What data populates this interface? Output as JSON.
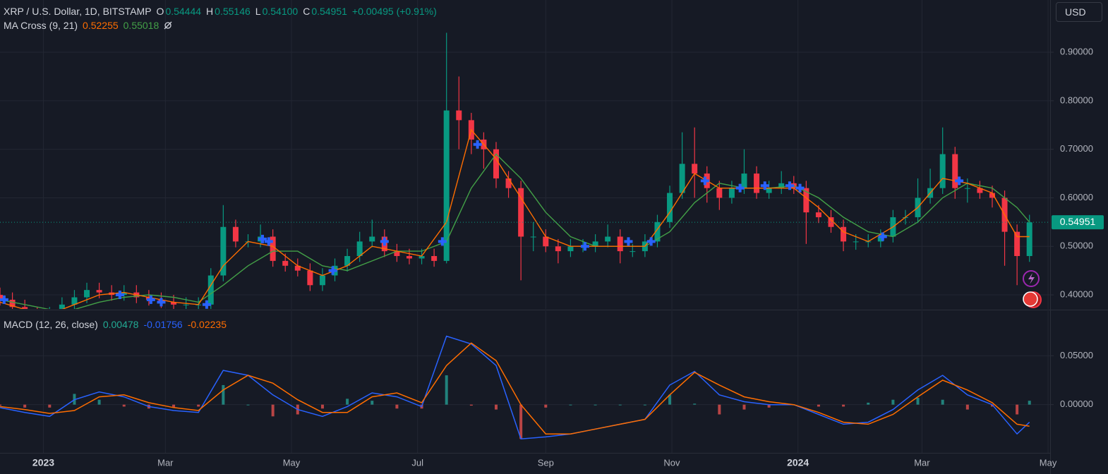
{
  "chart_data": [
    {
      "type": "candlestick",
      "title": "XRP / U.S. Dollar, 1D, BITSTAMP",
      "quote": [
        {
          "label": "O",
          "value": "0.54444"
        },
        {
          "label": "H",
          "value": "0.55146"
        },
        {
          "label": "L",
          "value": "0.54100"
        },
        {
          "label": "C",
          "value": "0.54951"
        }
      ],
      "change": "+0.00495 (+0.91%)",
      "currency": "USD",
      "x": [
        0,
        6,
        12,
        18,
        24,
        30,
        36,
        42,
        48,
        54,
        60,
        66,
        72,
        78,
        84,
        90,
        96,
        102,
        108,
        114,
        120,
        126,
        132,
        138,
        144,
        150,
        156,
        162,
        168,
        174,
        180,
        186,
        192,
        198,
        204,
        210,
        216,
        222,
        228,
        234,
        240,
        246,
        252,
        258,
        264,
        270,
        276,
        282,
        288,
        294,
        300,
        306,
        312,
        318,
        324,
        330,
        336,
        342,
        348,
        354,
        360,
        366,
        372,
        378,
        384,
        390,
        396,
        402,
        408,
        414,
        420,
        426,
        432,
        438,
        444,
        450,
        456,
        462,
        468,
        474,
        480,
        486,
        492,
        498
      ],
      "open": [
        0.4,
        0.39,
        0.375,
        0.36,
        0.355,
        0.36,
        0.38,
        0.395,
        0.41,
        0.405,
        0.4,
        0.405,
        0.395,
        0.39,
        0.385,
        0.38,
        0.38,
        0.38,
        0.44,
        0.54,
        0.51,
        0.51,
        0.52,
        0.47,
        0.46,
        0.45,
        0.42,
        0.44,
        0.46,
        0.48,
        0.51,
        0.52,
        0.49,
        0.48,
        0.475,
        0.48,
        0.47,
        0.78,
        0.76,
        0.72,
        0.7,
        0.64,
        0.62,
        0.52,
        0.52,
        0.5,
        0.49,
        0.5,
        0.5,
        0.51,
        0.52,
        0.49,
        0.49,
        0.51,
        0.55,
        0.61,
        0.67,
        0.65,
        0.62,
        0.6,
        0.62,
        0.65,
        0.61,
        0.62,
        0.63,
        0.62,
        0.57,
        0.56,
        0.54,
        0.51,
        0.51,
        0.51,
        0.52,
        0.56,
        0.56,
        0.6,
        0.62,
        0.69,
        0.62,
        0.62,
        0.61,
        0.6,
        0.53,
        0.48
      ],
      "high": [
        0.415,
        0.405,
        0.39,
        0.375,
        0.375,
        0.395,
        0.41,
        0.425,
        0.425,
        0.42,
        0.42,
        0.42,
        0.41,
        0.405,
        0.4,
        0.395,
        0.395,
        0.455,
        0.585,
        0.555,
        0.525,
        0.545,
        0.535,
        0.485,
        0.475,
        0.465,
        0.455,
        0.475,
        0.495,
        0.53,
        0.555,
        0.535,
        0.505,
        0.495,
        0.495,
        0.495,
        0.94,
        0.85,
        0.775,
        0.735,
        0.715,
        0.655,
        0.635,
        0.55,
        0.535,
        0.515,
        0.515,
        0.515,
        0.525,
        0.545,
        0.535,
        0.505,
        0.525,
        0.565,
        0.625,
        0.735,
        0.745,
        0.665,
        0.635,
        0.635,
        0.7,
        0.665,
        0.635,
        0.655,
        0.645,
        0.635,
        0.585,
        0.575,
        0.555,
        0.525,
        0.525,
        0.535,
        0.575,
        0.575,
        0.64,
        0.66,
        0.745,
        0.705,
        0.64,
        0.635,
        0.625,
        0.615,
        0.545,
        0.565
      ],
      "low": [
        0.378,
        0.363,
        0.348,
        0.343,
        0.343,
        0.348,
        0.368,
        0.383,
        0.393,
        0.388,
        0.388,
        0.383,
        0.378,
        0.373,
        0.368,
        0.368,
        0.368,
        0.368,
        0.428,
        0.498,
        0.498,
        0.498,
        0.458,
        0.448,
        0.438,
        0.408,
        0.408,
        0.428,
        0.448,
        0.468,
        0.498,
        0.478,
        0.468,
        0.463,
        0.463,
        0.458,
        0.465,
        0.7,
        0.69,
        0.66,
        0.62,
        0.6,
        0.43,
        0.49,
        0.488,
        0.465,
        0.478,
        0.488,
        0.488,
        0.498,
        0.465,
        0.478,
        0.478,
        0.498,
        0.538,
        0.598,
        0.6,
        0.59,
        0.575,
        0.588,
        0.608,
        0.598,
        0.598,
        0.608,
        0.608,
        0.505,
        0.548,
        0.528,
        0.49,
        0.493,
        0.498,
        0.498,
        0.508,
        0.545,
        0.548,
        0.588,
        0.608,
        0.598,
        0.59,
        0.598,
        0.58,
        0.46,
        0.42,
        0.468
      ],
      "close": [
        0.39,
        0.375,
        0.36,
        0.355,
        0.36,
        0.38,
        0.395,
        0.41,
        0.405,
        0.4,
        0.405,
        0.395,
        0.39,
        0.385,
        0.38,
        0.38,
        0.38,
        0.44,
        0.54,
        0.51,
        0.51,
        0.52,
        0.47,
        0.46,
        0.45,
        0.42,
        0.44,
        0.46,
        0.48,
        0.51,
        0.52,
        0.49,
        0.48,
        0.475,
        0.48,
        0.47,
        0.78,
        0.76,
        0.72,
        0.7,
        0.64,
        0.62,
        0.52,
        0.52,
        0.5,
        0.49,
        0.5,
        0.5,
        0.51,
        0.52,
        0.49,
        0.49,
        0.51,
        0.55,
        0.61,
        0.67,
        0.65,
        0.62,
        0.6,
        0.62,
        0.65,
        0.61,
        0.62,
        0.63,
        0.62,
        0.57,
        0.56,
        0.54,
        0.51,
        0.51,
        0.51,
        0.52,
        0.56,
        0.56,
        0.6,
        0.62,
        0.69,
        0.62,
        0.62,
        0.61,
        0.6,
        0.53,
        0.48,
        0.5495
      ],
      "up_color": "#089981",
      "down_color": "#f23645",
      "last_price": {
        "value": 0.54951,
        "label": "0.54951"
      },
      "ma_cross": {
        "title": "MA Cross (9, 21)",
        "x": [
          0,
          12,
          24,
          36,
          48,
          60,
          72,
          84,
          96,
          108,
          120,
          132,
          144,
          156,
          168,
          180,
          192,
          204,
          216,
          228,
          240,
          252,
          264,
          276,
          288,
          300,
          312,
          324,
          336,
          348,
          360,
          372,
          384,
          396,
          408,
          420,
          432,
          444,
          456,
          468,
          480,
          492,
          498
        ],
        "fast": {
          "color": "#ff6d00",
          "current": "0.52255",
          "values": [
            0.385,
            0.37,
            0.36,
            0.38,
            0.4,
            0.405,
            0.395,
            0.385,
            0.38,
            0.46,
            0.51,
            0.5,
            0.46,
            0.44,
            0.46,
            0.5,
            0.49,
            0.48,
            0.55,
            0.74,
            0.68,
            0.6,
            0.52,
            0.5,
            0.5,
            0.5,
            0.5,
            0.57,
            0.65,
            0.62,
            0.62,
            0.62,
            0.62,
            0.58,
            0.53,
            0.51,
            0.54,
            0.58,
            0.64,
            0.63,
            0.61,
            0.52,
            0.52
          ]
        },
        "slow": {
          "color": "#43a047",
          "current": "0.55018",
          "values": [
            0.39,
            0.38,
            0.37,
            0.37,
            0.385,
            0.395,
            0.4,
            0.395,
            0.385,
            0.42,
            0.46,
            0.49,
            0.49,
            0.46,
            0.45,
            0.47,
            0.49,
            0.49,
            0.51,
            0.62,
            0.69,
            0.64,
            0.57,
            0.52,
            0.5,
            0.5,
            0.5,
            0.53,
            0.59,
            0.63,
            0.62,
            0.62,
            0.625,
            0.6,
            0.56,
            0.53,
            0.52,
            0.55,
            0.6,
            0.63,
            0.62,
            0.58,
            0.55
          ]
        },
        "crosses": {
          "color": "#2962ff",
          "x": [
            2,
            58,
            73,
            78,
            100,
            127,
            130,
            161,
            186,
            214,
            231,
            283,
            304,
            315,
            341,
            358,
            370,
            382,
            387,
            427,
            464
          ],
          "y": [
            0.39,
            0.4,
            0.39,
            0.385,
            0.38,
            0.515,
            0.51,
            0.45,
            0.51,
            0.51,
            0.71,
            0.5,
            0.51,
            0.51,
            0.635,
            0.62,
            0.625,
            0.625,
            0.62,
            0.52,
            0.635
          ]
        }
      },
      "xlim": [
        0,
        508
      ],
      "ylim": [
        0.371,
        1.0076
      ],
      "yticks": [
        {
          "value": 0.4,
          "label": "0.40000"
        },
        {
          "value": 0.5,
          "label": "0.50000"
        },
        {
          "value": 0.6,
          "label": "0.60000"
        },
        {
          "value": 0.7,
          "label": "0.70000"
        },
        {
          "value": 0.8,
          "label": "0.80000"
        },
        {
          "value": 0.9,
          "label": "0.90000"
        }
      ],
      "xticks": [
        {
          "value": 21,
          "label": "2023"
        },
        {
          "value": 80,
          "label": "Mar"
        },
        {
          "value": 141,
          "label": "May"
        },
        {
          "value": 202,
          "label": "Jul"
        },
        {
          "value": 264,
          "label": "Sep"
        },
        {
          "value": 325,
          "label": "Nov"
        },
        {
          "value": 386,
          "label": "2024"
        },
        {
          "value": 446,
          "label": "Mar"
        },
        {
          "value": 507,
          "label": "May"
        }
      ],
      "grid": true
    },
    {
      "type": "macd",
      "title": "MACD (12, 26, close)",
      "x": [
        0,
        12,
        24,
        36,
        48,
        60,
        72,
        84,
        96,
        108,
        120,
        132,
        144,
        156,
        168,
        180,
        192,
        204,
        216,
        228,
        240,
        252,
        264,
        276,
        288,
        300,
        312,
        324,
        336,
        348,
        360,
        372,
        384,
        396,
        408,
        420,
        432,
        444,
        456,
        468,
        480,
        492,
        498
      ],
      "histogram": {
        "current": "0.00478",
        "up_color": "#26a69a",
        "down_color": "#ef5350",
        "values": [
          -0.001,
          -0.003,
          -0.003,
          0.011,
          0.005,
          -0.002,
          -0.004,
          -0.003,
          -0.002,
          0.02,
          0,
          -0.012,
          -0.01,
          -0.004,
          0.006,
          0.004,
          -0.004,
          -0.004,
          0.03,
          -0.001,
          -0.005,
          -0.035,
          -0.003,
          0,
          0,
          0,
          0,
          0.01,
          0.001,
          -0.01,
          -0.005,
          -0.003,
          0,
          -0.002,
          -0.002,
          0.002,
          0.005,
          0.007,
          0.005,
          -0.005,
          -0.002,
          -0.01,
          0.004
        ]
      },
      "macd": {
        "current": "-0.01756",
        "color": "#2962ff",
        "values": [
          -0.003,
          -0.008,
          -0.012,
          0.005,
          0.013,
          0.008,
          -0.002,
          -0.006,
          -0.008,
          0.035,
          0.03,
          0.01,
          -0.005,
          -0.012,
          -0.002,
          0.012,
          0.008,
          -0.002,
          0.07,
          0.062,
          0.04,
          -0.035,
          -0.033,
          -0.03,
          -0.025,
          -0.02,
          -0.015,
          0.02,
          0.034,
          0.01,
          0.003,
          0,
          0,
          -0.01,
          -0.02,
          -0.018,
          -0.005,
          0.015,
          0.03,
          0.01,
          0,
          -0.03,
          -0.018
        ]
      },
      "signal": {
        "current": "-0.02235",
        "color": "#ff6d00",
        "values": [
          -0.002,
          -0.005,
          -0.009,
          -0.006,
          0.008,
          0.01,
          0.002,
          -0.003,
          -0.006,
          0.015,
          0.03,
          0.022,
          0.005,
          -0.008,
          -0.008,
          0.008,
          0.012,
          0.002,
          0.04,
          0.063,
          0.045,
          0,
          -0.03,
          -0.03,
          -0.025,
          -0.02,
          -0.015,
          0.01,
          0.033,
          0.02,
          0.008,
          0.003,
          0,
          -0.008,
          -0.018,
          -0.02,
          -0.01,
          0.008,
          0.025,
          0.015,
          0.002,
          -0.02,
          -0.022
        ]
      },
      "xlim": [
        0,
        508
      ],
      "ylim": [
        -0.0493,
        0.0957
      ],
      "yticks": [
        {
          "value": 0,
          "label": "0.00000"
        },
        {
          "value": 0.05,
          "label": "0.05000"
        }
      ],
      "grid": true
    }
  ]
}
